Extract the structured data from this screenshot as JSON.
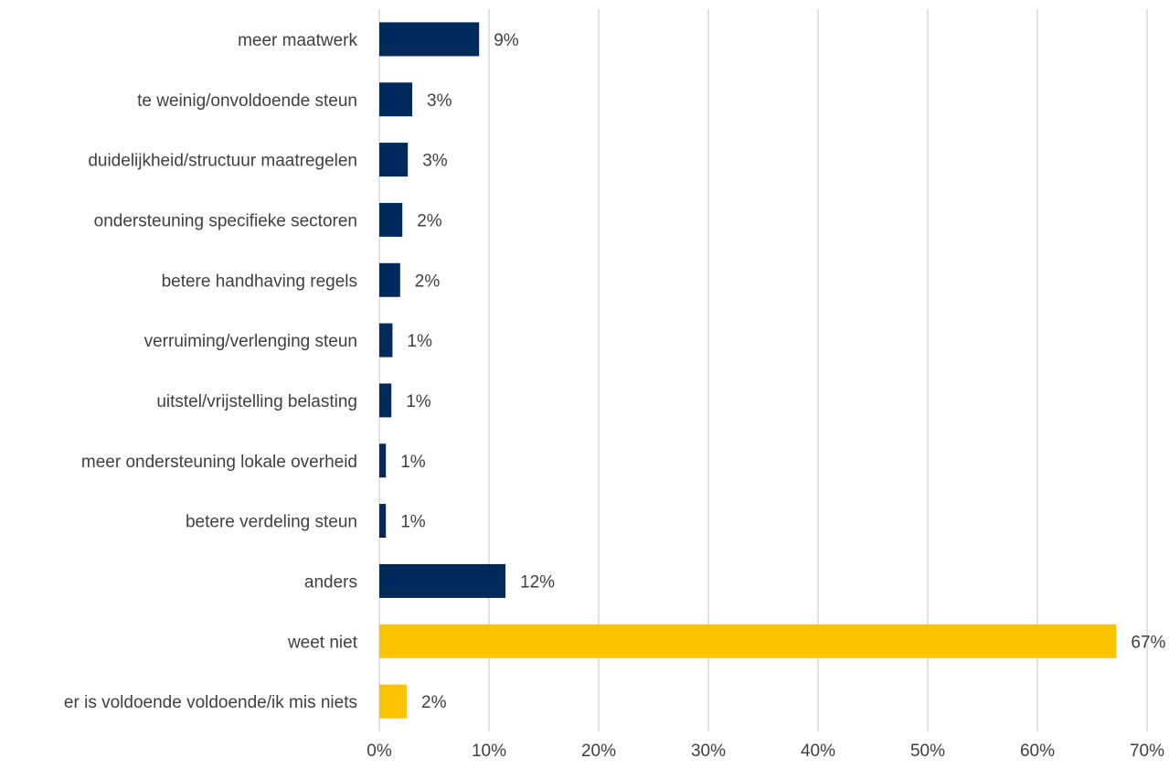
{
  "chart_data": {
    "type": "bar",
    "orientation": "horizontal",
    "categories": [
      "meer maatwerk",
      "te weinig/onvoldoende steun",
      "duidelijkheid/structuur maatregelen",
      "ondersteuning specifieke sectoren",
      "betere handhaving regels",
      "verruiming/verlenging steun",
      "uitstel/vrijstelling belasting",
      "meer ondersteuning lokale overheid",
      "betere verdeling steun",
      "anders",
      "weet niet",
      "er is voldoende voldoende/ik mis niets"
    ],
    "values": [
      9.1,
      3.0,
      2.6,
      2.1,
      1.9,
      1.2,
      1.1,
      0.6,
      0.6,
      11.5,
      67.2,
      2.5
    ],
    "data_labels": [
      "9%",
      "3%",
      "3%",
      "2%",
      "2%",
      "1%",
      "1%",
      "1%",
      "1%",
      "12%",
      "67%",
      "2%"
    ],
    "bar_colors": [
      "#002a5c",
      "#002a5c",
      "#002a5c",
      "#002a5c",
      "#002a5c",
      "#002a5c",
      "#002a5c",
      "#002a5c",
      "#002a5c",
      "#002a5c",
      "#fcc300",
      "#fcc300"
    ],
    "xlim": [
      0,
      70
    ],
    "x_ticks": [
      0,
      10,
      20,
      30,
      40,
      50,
      60,
      70
    ],
    "x_tick_labels": [
      "0%",
      "10%",
      "20%",
      "30%",
      "40%",
      "50%",
      "60%",
      "70%"
    ],
    "grid": "vertical",
    "legend": "none",
    "title": "",
    "xlabel": "",
    "ylabel": ""
  }
}
